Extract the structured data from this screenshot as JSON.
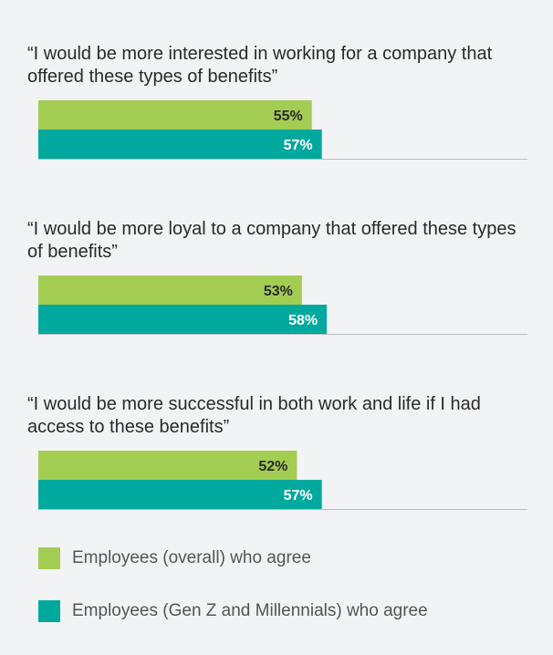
{
  "colors": {
    "overall": "#a3cc52",
    "genz_millennials": "#00a99d",
    "background": "#f2f3f5",
    "axis_line": "#b9bcc0"
  },
  "chart_data": {
    "type": "bar",
    "orientation": "horizontal",
    "categories": [
      "“I would be more interested in working for a company that offered these types of benefits”",
      "“I would be more loyal to a company that offered these types of benefits”",
      "“I would be more successful in both work and life if I had access to these benefits”"
    ],
    "series": [
      {
        "name": "Employees (overall) who agree",
        "values": [
          55,
          53,
          52
        ]
      },
      {
        "name": "Employees (Gen Z and Millennials) who agree",
        "values": [
          57,
          58,
          57
        ]
      }
    ],
    "value_labels": [
      [
        "55%",
        "53%",
        "52%"
      ],
      [
        "57%",
        "58%",
        "57%"
      ]
    ],
    "unit": "%",
    "xlim": [
      0,
      100
    ],
    "grid": false,
    "legend_position": "bottom"
  },
  "legend": {
    "items": [
      {
        "label": "Employees (overall) who agree"
      },
      {
        "label": "Employees (Gen Z and Millennials) who agree"
      }
    ]
  }
}
